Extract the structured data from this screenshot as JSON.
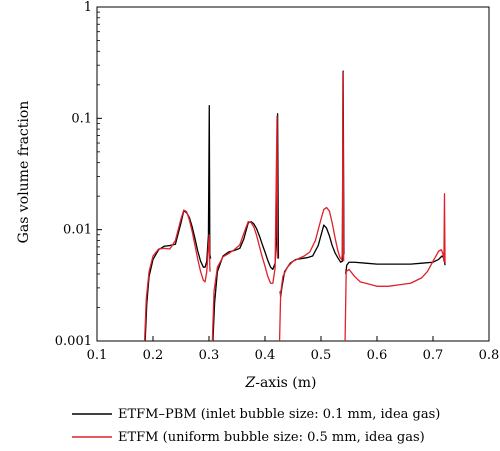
{
  "chart_data": {
    "type": "line",
    "xlabel_italic": "Z",
    "xlabel_rest": "-axis (m)",
    "ylabel": "Gas volume fraction",
    "xlim": [
      0.1,
      0.8
    ],
    "ylim": [
      0.001,
      1
    ],
    "yscale": "log",
    "x_ticks": [
      0.1,
      0.2,
      0.3,
      0.4,
      0.5,
      0.6,
      0.7,
      0.8
    ],
    "x_tick_labels": [
      "0.1",
      "0.2",
      "0.3",
      "0.4",
      "0.5",
      "0.6",
      "0.7",
      "0.8"
    ],
    "y_ticks": [
      0.001,
      0.01,
      0.1,
      1
    ],
    "y_tick_labels": [
      "0.001",
      "0.01",
      "0.1",
      "1"
    ],
    "grid": false,
    "legend_placement": "bottom",
    "series": [
      {
        "name": "ETFM–PBM (inlet bubble size: 0.1 mm, idea gas)",
        "color": "#000000",
        "points": [
          [
            0.186,
            0.001
          ],
          [
            0.189,
            0.0022
          ],
          [
            0.193,
            0.0038
          ],
          [
            0.2,
            0.0054
          ],
          [
            0.21,
            0.0066
          ],
          [
            0.22,
            0.0071
          ],
          [
            0.23,
            0.0072
          ],
          [
            0.24,
            0.0074
          ],
          [
            0.25,
            0.0115
          ],
          [
            0.255,
            0.0148
          ],
          [
            0.26,
            0.0142
          ],
          [
            0.265,
            0.0128
          ],
          [
            0.27,
            0.0106
          ],
          [
            0.275,
            0.0083
          ],
          [
            0.28,
            0.0064
          ],
          [
            0.285,
            0.0052
          ],
          [
            0.29,
            0.0046
          ],
          [
            0.293,
            0.0046
          ],
          [
            0.296,
            0.0052
          ],
          [
            0.299,
            0.009
          ],
          [
            0.3005,
            0.13
          ],
          [
            0.3015,
            0.006
          ],
          [
            0.303,
            0.0055
          ],
          [
            0.3035,
            null
          ],
          [
            0.307,
            0.001
          ],
          [
            0.31,
            0.0022
          ],
          [
            0.315,
            0.0042
          ],
          [
            0.325,
            0.0058
          ],
          [
            0.335,
            0.0063
          ],
          [
            0.345,
            0.0065
          ],
          [
            0.355,
            0.0068
          ],
          [
            0.362,
            0.0082
          ],
          [
            0.37,
            0.0115
          ],
          [
            0.375,
            0.0118
          ],
          [
            0.38,
            0.0113
          ],
          [
            0.385,
            0.0102
          ],
          [
            0.39,
            0.0088
          ],
          [
            0.395,
            0.0074
          ],
          [
            0.4,
            0.0063
          ],
          [
            0.405,
            0.0053
          ],
          [
            0.41,
            0.0046
          ],
          [
            0.414,
            0.0044
          ],
          [
            0.418,
            0.005
          ],
          [
            0.421,
            0.0085
          ],
          [
            0.4225,
            0.11
          ],
          [
            0.424,
            0.0055
          ],
          [
            0.4245,
            null
          ],
          [
            0.427,
            0.0028
          ],
          [
            0.428,
            0.0025
          ],
          [
            0.43,
            0.003
          ],
          [
            0.435,
            0.0042
          ],
          [
            0.445,
            0.005
          ],
          [
            0.455,
            0.0054
          ],
          [
            0.465,
            0.0055
          ],
          [
            0.475,
            0.0056
          ],
          [
            0.485,
            0.0058
          ],
          [
            0.495,
            0.0072
          ],
          [
            0.505,
            0.011
          ],
          [
            0.51,
            0.0103
          ],
          [
            0.515,
            0.0088
          ],
          [
            0.52,
            0.0072
          ],
          [
            0.525,
            0.0062
          ],
          [
            0.53,
            0.0056
          ],
          [
            0.535,
            0.0051
          ],
          [
            0.538,
            0.0052
          ],
          [
            0.5395,
            0.265
          ],
          [
            0.541,
            0.006
          ],
          [
            0.5415,
            null
          ],
          [
            0.544,
            0.004
          ],
          [
            0.546,
            0.0048
          ],
          [
            0.55,
            0.0051
          ],
          [
            0.56,
            0.0051
          ],
          [
            0.58,
            0.005
          ],
          [
            0.6,
            0.0049
          ],
          [
            0.62,
            0.0049
          ],
          [
            0.64,
            0.0049
          ],
          [
            0.66,
            0.0049
          ],
          [
            0.68,
            0.005
          ],
          [
            0.7,
            0.0051
          ],
          [
            0.71,
            0.0054
          ],
          [
            0.716,
            0.0058
          ],
          [
            0.719,
            0.0056
          ],
          [
            0.7205,
            0.0052
          ],
          [
            0.7215,
            0.0048
          ]
        ]
      },
      {
        "name": "ETFM (uniform bubble size: 0.5 mm, idea gas)",
        "color": "#e0202a",
        "points": [
          [
            0.185,
            0.001
          ],
          [
            0.188,
            0.0024
          ],
          [
            0.193,
            0.0042
          ],
          [
            0.2,
            0.0058
          ],
          [
            0.21,
            0.0067
          ],
          [
            0.22,
            0.0068
          ],
          [
            0.23,
            0.0067
          ],
          [
            0.24,
            0.008
          ],
          [
            0.25,
            0.0125
          ],
          [
            0.255,
            0.015
          ],
          [
            0.26,
            0.0145
          ],
          [
            0.265,
            0.0122
          ],
          [
            0.27,
            0.0096
          ],
          [
            0.275,
            0.0072
          ],
          [
            0.28,
            0.0054
          ],
          [
            0.285,
            0.0042
          ],
          [
            0.29,
            0.0035
          ],
          [
            0.293,
            0.0034
          ],
          [
            0.296,
            0.0042
          ],
          [
            0.299,
            0.007
          ],
          [
            0.3003,
            0.009
          ],
          [
            0.3015,
            0.0046
          ],
          [
            0.302,
            0.0042
          ],
          [
            0.3025,
            null
          ],
          [
            0.306,
            0.001
          ],
          [
            0.309,
            0.0028
          ],
          [
            0.315,
            0.0046
          ],
          [
            0.325,
            0.0057
          ],
          [
            0.335,
            0.0061
          ],
          [
            0.345,
            0.0066
          ],
          [
            0.355,
            0.0073
          ],
          [
            0.362,
            0.0092
          ],
          [
            0.37,
            0.0118
          ],
          [
            0.375,
            0.0116
          ],
          [
            0.38,
            0.0106
          ],
          [
            0.385,
            0.0089
          ],
          [
            0.39,
            0.0071
          ],
          [
            0.395,
            0.0057
          ],
          [
            0.4,
            0.0047
          ],
          [
            0.405,
            0.0038
          ],
          [
            0.41,
            0.0033
          ],
          [
            0.414,
            0.0033
          ],
          [
            0.418,
            0.0045
          ],
          [
            0.4215,
            0.104
          ],
          [
            0.4225,
            0.0055
          ],
          [
            0.423,
            null
          ],
          [
            0.426,
            0.001
          ],
          [
            0.428,
            0.0027
          ],
          [
            0.432,
            0.0038
          ],
          [
            0.44,
            0.0046
          ],
          [
            0.45,
            0.0052
          ],
          [
            0.46,
            0.0055
          ],
          [
            0.47,
            0.0058
          ],
          [
            0.48,
            0.0063
          ],
          [
            0.49,
            0.008
          ],
          [
            0.5,
            0.0124
          ],
          [
            0.505,
            0.0152
          ],
          [
            0.51,
            0.0158
          ],
          [
            0.515,
            0.0147
          ],
          [
            0.52,
            0.0115
          ],
          [
            0.525,
            0.0085
          ],
          [
            0.53,
            0.0065
          ],
          [
            0.534,
            0.0056
          ],
          [
            0.537,
            0.0054
          ],
          [
            0.5385,
            0.0065
          ],
          [
            0.539,
            0.26
          ],
          [
            0.5405,
            0.0052
          ],
          [
            0.541,
            null
          ],
          [
            0.543,
            0.001
          ],
          [
            0.545,
            0.0042
          ],
          [
            0.55,
            0.0044
          ],
          [
            0.56,
            0.0038
          ],
          [
            0.57,
            0.0034
          ],
          [
            0.58,
            0.0033
          ],
          [
            0.6,
            0.0031
          ],
          [
            0.62,
            0.0031
          ],
          [
            0.64,
            0.0032
          ],
          [
            0.66,
            0.0033
          ],
          [
            0.68,
            0.0037
          ],
          [
            0.69,
            0.0042
          ],
          [
            0.7,
            0.0052
          ],
          [
            0.71,
            0.0064
          ],
          [
            0.715,
            0.0066
          ],
          [
            0.718,
            0.006
          ],
          [
            0.7195,
            0.0052
          ],
          [
            0.7205,
            0.021
          ],
          [
            0.7215,
            0.005
          ]
        ]
      }
    ]
  }
}
